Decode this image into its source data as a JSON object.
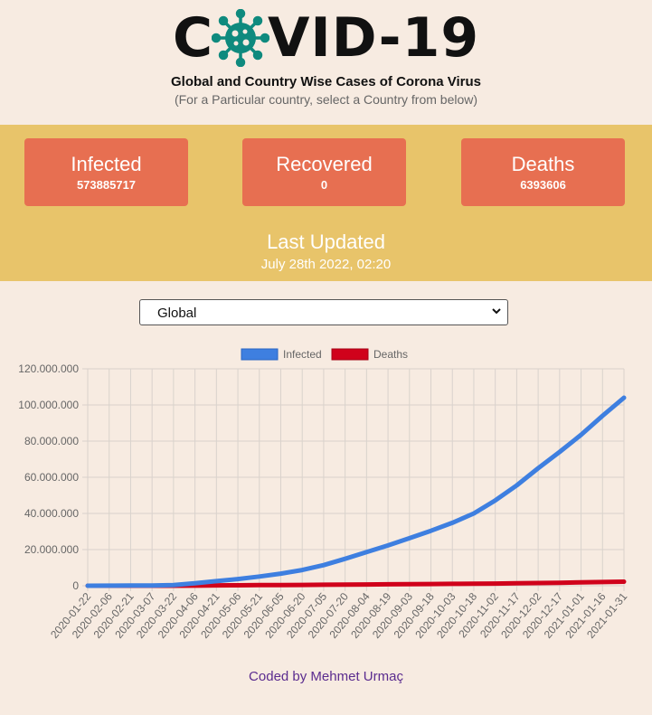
{
  "header": {
    "title_left": "C",
    "title_right": "VID-19",
    "subtitle": "Global and Country Wise Cases of Corona Virus",
    "hint": "(For a Particular country, select a Country from below)"
  },
  "stats": [
    {
      "label": "Infected",
      "value": "573885717"
    },
    {
      "label": "Recovered",
      "value": "0"
    },
    {
      "label": "Deaths",
      "value": "6393606"
    }
  ],
  "last_updated": {
    "label": "Last Updated",
    "date": "July 28th 2022, 02:20"
  },
  "country_select": {
    "value": "Global"
  },
  "colors": {
    "band": "#e8c46a",
    "card": "#e76f51",
    "virus": "#0f8a7e",
    "infected": "#3e7fe0",
    "deaths": "#d0021b"
  },
  "footer": {
    "text": "Coded by Mehmet Urmaç"
  },
  "chart_data": {
    "type": "line",
    "title": "",
    "xlabel": "",
    "ylabel": "",
    "ylim": [
      0,
      120000000
    ],
    "y_ticks": [
      "0",
      "20.000.000",
      "40.000.000",
      "60.000.000",
      "80.000.000",
      "100.000.000",
      "120.000.000"
    ],
    "x_ticks": [
      "2020-01-22",
      "2020-02-06",
      "2020-02-21",
      "2020-03-07",
      "2020-03-22",
      "2020-04-06",
      "2020-04-21",
      "2020-05-06",
      "2020-05-21",
      "2020-06-05",
      "2020-06-20",
      "2020-07-05",
      "2020-07-20",
      "2020-08-04",
      "2020-08-19",
      "2020-09-03",
      "2020-09-18",
      "2020-10-03",
      "2020-10-18",
      "2020-11-02",
      "2020-11-17",
      "2020-12-02",
      "2020-12-17",
      "2021-01-01",
      "2021-01-16",
      "2021-01-31"
    ],
    "grid": true,
    "legend": "top-center",
    "series": [
      {
        "name": "Infected",
        "color": "#3e7fe0",
        "values": [
          557,
          28000,
          77000,
          102000,
          336000,
          1350000,
          2550000,
          3700000,
          5100000,
          6700000,
          8700000,
          11400000,
          14900000,
          18600000,
          22300000,
          26300000,
          30400000,
          34800000,
          40000000,
          47200000,
          55500000,
          65000000,
          74000000,
          83500000,
          94000000,
          104000000
        ]
      },
      {
        "name": "Deaths",
        "color": "#d0021b",
        "values": [
          17,
          560,
          2250,
          3500,
          14500,
          74000,
          180000,
          265000,
          330000,
          395000,
          465000,
          535000,
          620000,
          700000,
          775000,
          865000,
          945000,
          1030000,
          1115000,
          1210000,
          1330000,
          1490000,
          1650000,
          1830000,
          2030000,
          2260000
        ]
      }
    ]
  }
}
